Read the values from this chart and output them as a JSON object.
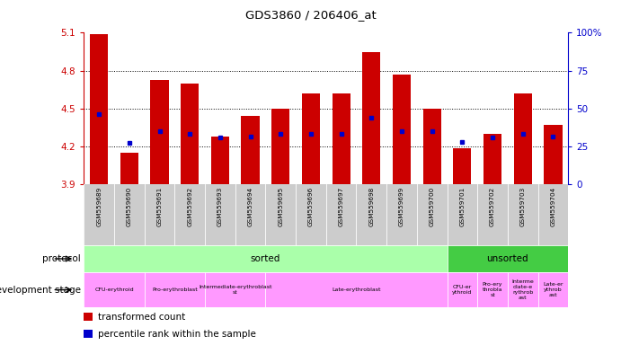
{
  "title": "GDS3860 / 206406_at",
  "samples": [
    "GSM559689",
    "GSM559690",
    "GSM559691",
    "GSM559692",
    "GSM559693",
    "GSM559694",
    "GSM559695",
    "GSM559696",
    "GSM559697",
    "GSM559698",
    "GSM559699",
    "GSM559700",
    "GSM559701",
    "GSM559702",
    "GSM559703",
    "GSM559704"
  ],
  "bar_values": [
    5.09,
    4.15,
    4.73,
    4.7,
    4.28,
    4.44,
    4.5,
    4.62,
    4.62,
    4.95,
    4.77,
    4.5,
    4.19,
    4.3,
    4.62,
    4.37
  ],
  "blue_values": [
    4.46,
    4.23,
    4.32,
    4.3,
    4.27,
    4.28,
    4.3,
    4.3,
    4.3,
    4.43,
    4.32,
    4.32,
    4.24,
    4.27,
    4.3,
    4.28
  ],
  "ymin": 3.9,
  "ymax": 5.1,
  "yticks": [
    3.9,
    4.2,
    4.5,
    4.8,
    5.1
  ],
  "right_yticks": [
    0,
    25,
    50,
    75,
    100
  ],
  "right_ytick_labels": [
    "0",
    "25",
    "50",
    "75",
    "100%"
  ],
  "bar_color": "#cc0000",
  "blue_color": "#0000cc",
  "bar_width": 0.6,
  "tick_label_color": "#cc0000",
  "right_tick_color": "#0000cc",
  "xtick_bg": "#cccccc",
  "proto_sorted_color": "#aaffaa",
  "proto_unsorted_color": "#44cc44",
  "dev_stage_color": "#ff99ff",
  "legend_bar_color": "#cc0000",
  "legend_blue_color": "#0000cc",
  "legend_text1": "transformed count",
  "legend_text2": "percentile rank within the sample",
  "bg_color": "#ffffff",
  "grid_color": "#000000",
  "grid_values": [
    4.2,
    4.5,
    4.8
  ]
}
